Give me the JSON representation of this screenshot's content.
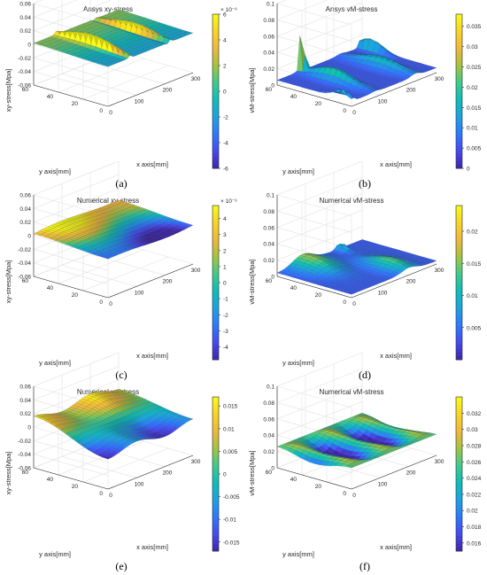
{
  "chart_data": [
    {
      "type": "surface3d",
      "panel": "(a)",
      "title": "Ansys xy-stress",
      "xlabel": "x axis[mm]",
      "ylabel": "y axis[mm]",
      "zlabel": "xy-stress[Mpa]",
      "x_ticks": [
        "0",
        "100",
        "200",
        "300"
      ],
      "y_ticks": [
        "0",
        "20",
        "40",
        "60"
      ],
      "z_ticks": [
        "-0.06",
        "-0.04",
        "-0.02",
        "0",
        "0.02",
        "0.04",
        "0.06"
      ],
      "xlim": [
        0,
        300
      ],
      "ylim": [
        0,
        60
      ],
      "zlim": [
        -0.06,
        0.06
      ],
      "colorbar": {
        "exponent": "× 10⁻³",
        "ticks": [
          "-6",
          "-4",
          "-2",
          "0",
          "2",
          "4",
          "6"
        ],
        "min": -6,
        "max": 6
      },
      "surface": "ansys-xy"
    },
    {
      "type": "surface3d",
      "panel": "(b)",
      "title": "Ansys vM-stress",
      "xlabel": "x axis[mm]",
      "ylabel": "y axis[mm]",
      "zlabel": "vM-stress[Mpa]",
      "x_ticks": [
        "0",
        "100",
        "200",
        "300"
      ],
      "y_ticks": [
        "0",
        "20",
        "40",
        "60"
      ],
      "z_ticks": [
        "0",
        "0.02",
        "0.04",
        "0.06",
        "0.08",
        "0.1"
      ],
      "xlim": [
        0,
        300
      ],
      "ylim": [
        0,
        60
      ],
      "zlim": [
        0,
        0.1
      ],
      "colorbar": {
        "exponent": "",
        "ticks": [
          "0",
          "0.005",
          "0.01",
          "0.015",
          "0.02",
          "0.025",
          "0.03",
          "0.035"
        ],
        "min": 0,
        "max": 0.038
      },
      "surface": "ansys-vm"
    },
    {
      "type": "surface3d",
      "panel": "(c)",
      "title": "Numerical xy-stress",
      "xlabel": "x axis[mm]",
      "ylabel": "y axis[mm]",
      "zlabel": "xy-stress[Mpa]",
      "x_ticks": [
        "0",
        "100",
        "200",
        "300"
      ],
      "y_ticks": [
        "0",
        "20",
        "40",
        "60"
      ],
      "z_ticks": [
        "-0.06",
        "-0.04",
        "-0.02",
        "0",
        "0.02",
        "0.04",
        "0.06"
      ],
      "xlim": [
        0,
        300
      ],
      "ylim": [
        0,
        60
      ],
      "zlim": [
        -0.06,
        0.06
      ],
      "colorbar": {
        "exponent": "× 10⁻³",
        "ticks": [
          "-4",
          "-3",
          "-2",
          "-1",
          "0",
          "1",
          "2",
          "3",
          "4"
        ],
        "min": -4.8,
        "max": 4.8
      },
      "surface": "num-xy-1"
    },
    {
      "type": "surface3d",
      "panel": "(d)",
      "title": "Numerical vM-stress",
      "xlabel": "x axis[mm]",
      "ylabel": "y axis[mm]",
      "zlabel": "vM-stress[Mpa]",
      "x_ticks": [
        "0",
        "100",
        "200",
        "300"
      ],
      "y_ticks": [
        "0",
        "20",
        "40",
        "60"
      ],
      "z_ticks": [
        "0",
        "0.02",
        "0.04",
        "0.06",
        "0.08",
        "0.1"
      ],
      "xlim": [
        0,
        300
      ],
      "ylim": [
        0,
        60
      ],
      "zlim": [
        0,
        0.1
      ],
      "colorbar": {
        "exponent": "",
        "ticks": [
          "0.005",
          "0.01",
          "0.015",
          "0.02"
        ],
        "min": 0,
        "max": 0.024
      },
      "surface": "num-vm-1"
    },
    {
      "type": "surface3d",
      "panel": "(e)",
      "title": "Numerical xy-stress",
      "xlabel": "x axis[mm]",
      "ylabel": "y axis[mm]",
      "zlabel": "xy-stress[Mpa]",
      "x_ticks": [
        "0",
        "100",
        "200",
        "300"
      ],
      "y_ticks": [
        "0",
        "20",
        "40",
        "60"
      ],
      "z_ticks": [
        "-0.06",
        "-0.04",
        "-0.02",
        "0",
        "0.02",
        "0.04",
        "0.06"
      ],
      "xlim": [
        0,
        300
      ],
      "ylim": [
        0,
        60
      ],
      "zlim": [
        -0.06,
        0.06
      ],
      "colorbar": {
        "exponent": "",
        "ticks": [
          "-0.015",
          "-0.01",
          "-0.005",
          "0",
          "0.005",
          "0.01",
          "0.015"
        ],
        "min": -0.017,
        "max": 0.017
      },
      "surface": "num-xy-2"
    },
    {
      "type": "surface3d",
      "panel": "(f)",
      "title": "Numerical vM-stress",
      "xlabel": "x axis[mm]",
      "ylabel": "y axis[mm]",
      "zlabel": "vM-stress[Mpa]",
      "x_ticks": [
        "0",
        "100",
        "200",
        "300"
      ],
      "y_ticks": [
        "0",
        "20",
        "40",
        "60"
      ],
      "z_ticks": [
        "0",
        "0.02",
        "0.04",
        "0.06",
        "0.08",
        "0.1"
      ],
      "xlim": [
        0,
        300
      ],
      "ylim": [
        0,
        60
      ],
      "zlim": [
        0,
        0.1
      ],
      "colorbar": {
        "exponent": "",
        "ticks": [
          "0.016",
          "0.018",
          "0.02",
          "0.022",
          "0.024",
          "0.026",
          "0.028",
          "0.03",
          "0.032"
        ],
        "min": 0.015,
        "max": 0.034
      },
      "surface": "num-vm-2"
    }
  ],
  "colormap": [
    "#3e26a8",
    "#4748f1",
    "#2c78ff",
    "#1ca2e3",
    "#0cbebc",
    "#3ecb8d",
    "#a1c540",
    "#f0b73c",
    "#f9d424",
    "#f9fb15"
  ]
}
